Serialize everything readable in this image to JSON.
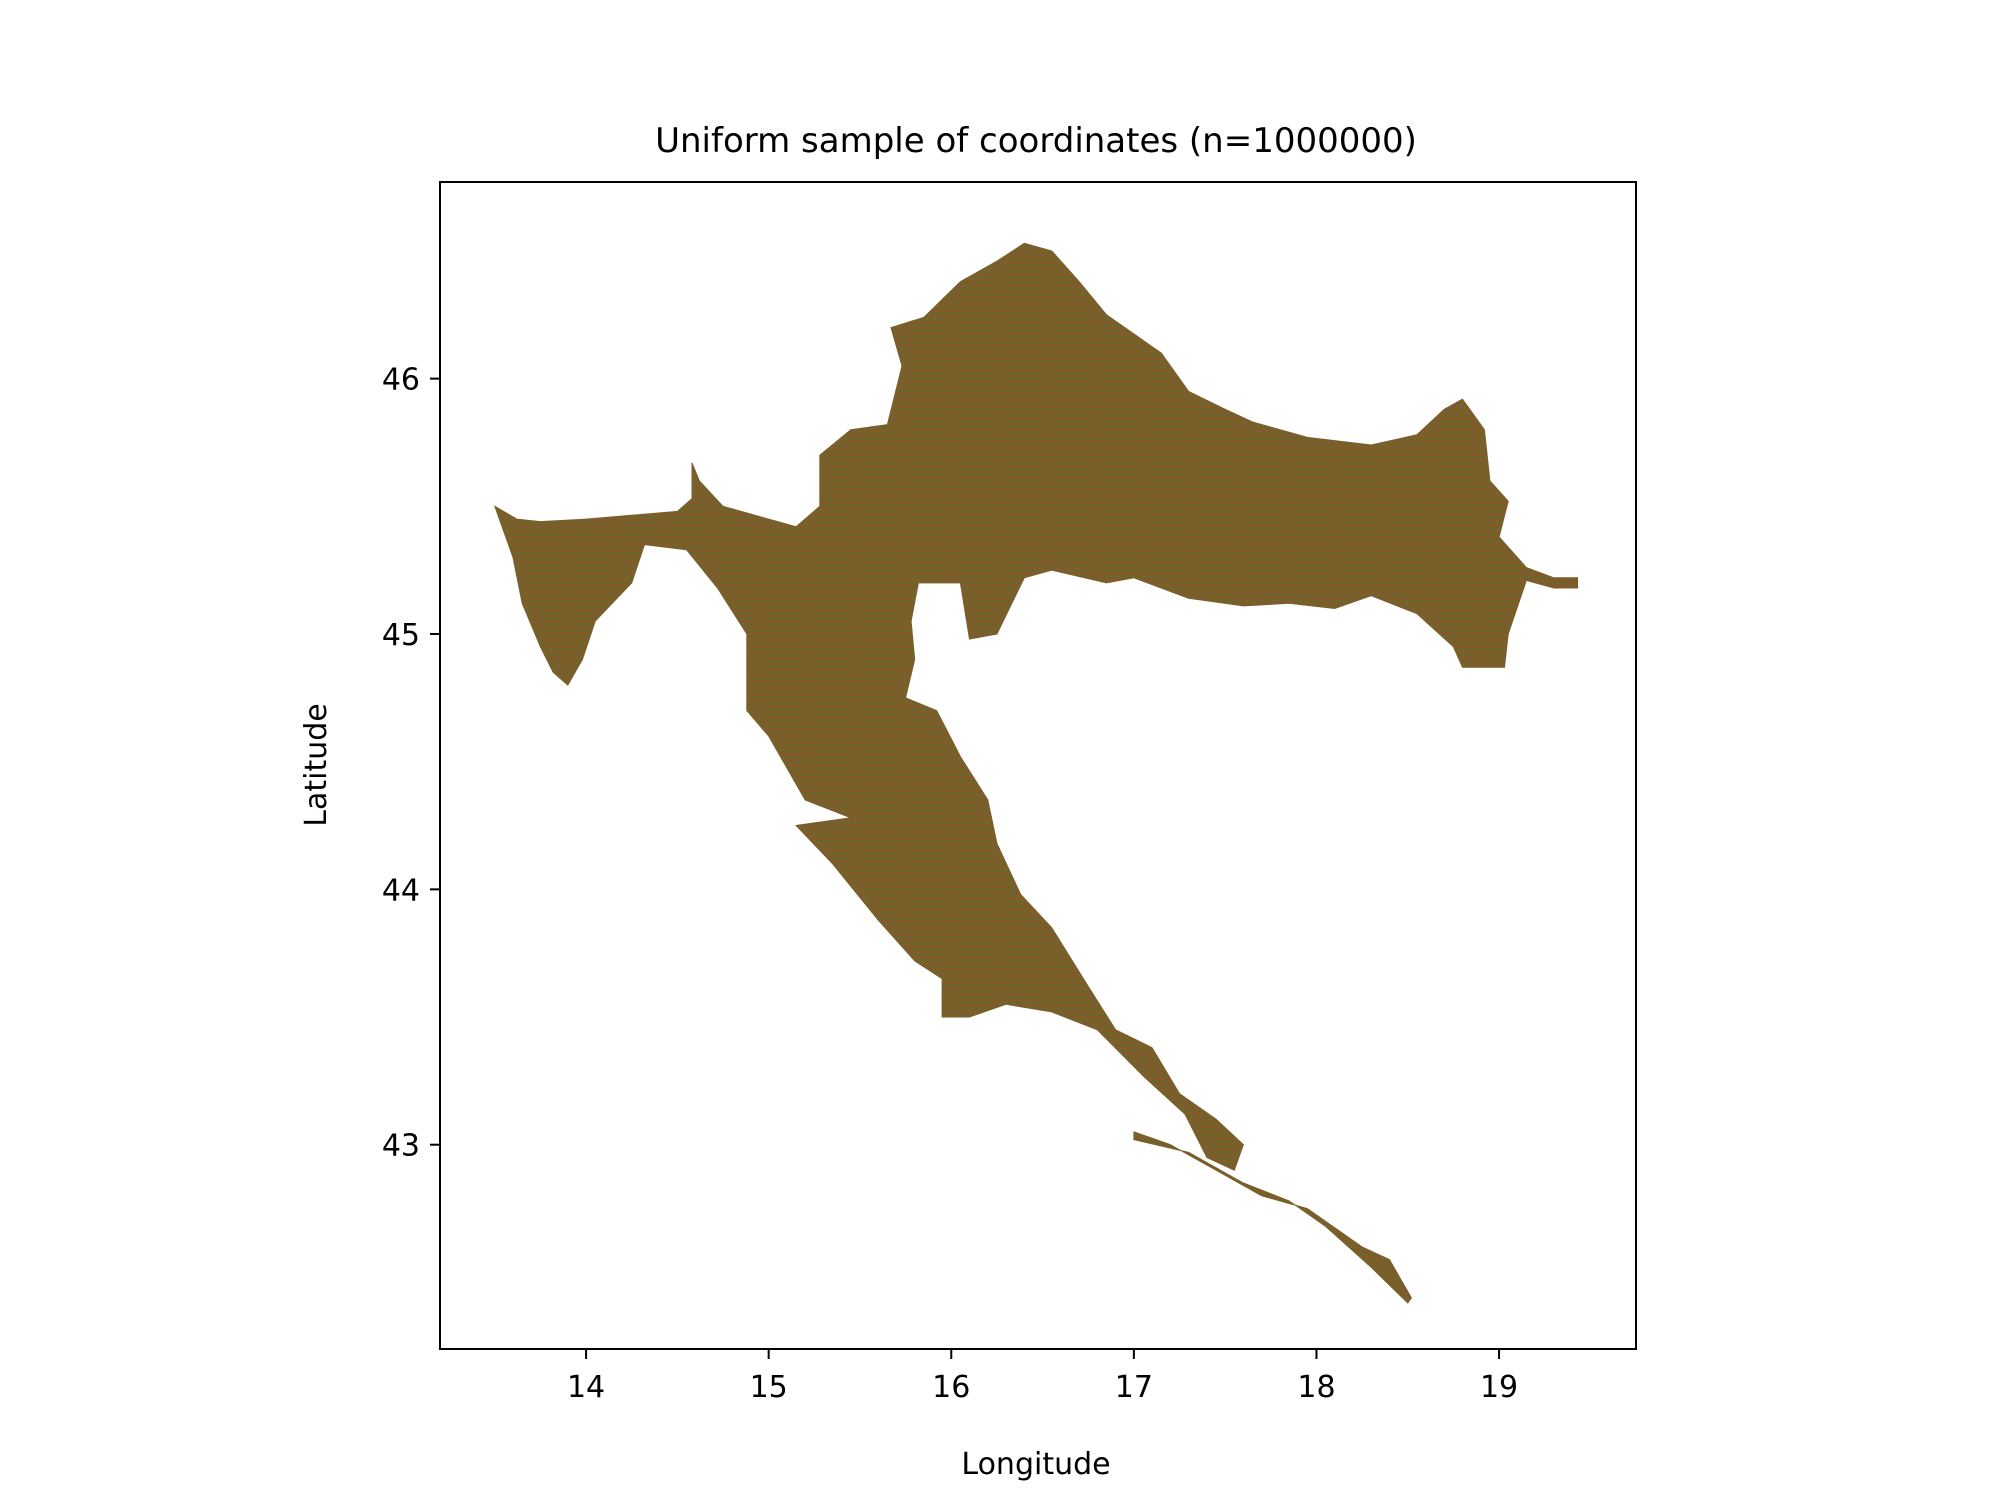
{
  "chart_data": {
    "type": "scatter",
    "title": "Uniform sample of coordinates (n=1000000)",
    "xlabel": "Longitude",
    "ylabel": "Latitude",
    "xlim": [
      13.2,
      19.75
    ],
    "ylim": [
      42.2,
      46.77
    ],
    "x_ticks": [
      14,
      15,
      16,
      17,
      18,
      19
    ],
    "y_ticks": [
      43,
      44,
      45,
      46
    ],
    "grid": false,
    "legend": "none",
    "fill_color": "#7a5f2a",
    "sample_colors": [
      "#5e6b2a",
      "#8a5630",
      "#7a5f2a"
    ],
    "series": [
      {
        "points": [
          [
            13.5,
            45.5
          ],
          [
            13.62,
            45.45
          ],
          [
            13.75,
            45.44
          ],
          [
            14.0,
            45.45
          ],
          [
            14.5,
            45.48
          ],
          [
            14.58,
            45.53
          ],
          [
            14.58,
            45.67
          ],
          [
            14.62,
            45.6
          ],
          [
            14.75,
            45.5
          ],
          [
            14.9,
            45.47
          ],
          [
            15.15,
            45.42
          ],
          [
            15.28,
            45.5
          ],
          [
            15.28,
            45.7
          ],
          [
            15.45,
            45.8
          ],
          [
            15.65,
            45.82
          ],
          [
            15.73,
            46.05
          ],
          [
            15.67,
            46.2
          ],
          [
            15.85,
            46.24
          ],
          [
            16.05,
            46.38
          ],
          [
            16.25,
            46.46
          ],
          [
            16.4,
            46.53
          ],
          [
            16.55,
            46.5
          ],
          [
            16.7,
            46.38
          ],
          [
            16.85,
            46.25
          ],
          [
            17.15,
            46.1
          ],
          [
            17.3,
            45.95
          ],
          [
            17.5,
            45.88
          ],
          [
            17.65,
            45.83
          ],
          [
            17.95,
            45.77
          ],
          [
            18.3,
            45.74
          ],
          [
            18.55,
            45.78
          ],
          [
            18.7,
            45.88
          ],
          [
            18.8,
            45.92
          ],
          [
            18.92,
            45.8
          ],
          [
            18.95,
            45.6
          ],
          [
            19.05,
            45.52
          ],
          [
            19.0,
            45.38
          ],
          [
            19.15,
            45.26
          ],
          [
            19.3,
            45.22
          ],
          [
            19.43,
            45.22
          ],
          [
            19.43,
            45.18
          ],
          [
            19.3,
            45.18
          ],
          [
            19.15,
            45.21
          ],
          [
            19.05,
            45.0
          ],
          [
            19.03,
            44.87
          ],
          [
            18.8,
            44.87
          ],
          [
            18.75,
            44.95
          ],
          [
            18.55,
            45.08
          ],
          [
            18.3,
            45.15
          ],
          [
            18.1,
            45.1
          ],
          [
            17.85,
            45.12
          ],
          [
            17.6,
            45.11
          ],
          [
            17.3,
            45.14
          ],
          [
            17.0,
            45.22
          ],
          [
            16.85,
            45.2
          ],
          [
            16.55,
            45.25
          ],
          [
            16.4,
            45.22
          ],
          [
            16.25,
            45.0
          ],
          [
            16.1,
            44.98
          ],
          [
            16.05,
            45.2
          ],
          [
            15.82,
            45.2
          ],
          [
            15.78,
            45.05
          ],
          [
            15.8,
            44.9
          ],
          [
            15.75,
            44.75
          ],
          [
            15.92,
            44.7
          ],
          [
            16.05,
            44.52
          ],
          [
            16.2,
            44.35
          ],
          [
            16.25,
            44.18
          ],
          [
            16.38,
            43.98
          ],
          [
            16.55,
            43.85
          ],
          [
            16.75,
            43.62
          ],
          [
            16.9,
            43.45
          ],
          [
            17.1,
            43.38
          ],
          [
            17.25,
            43.2
          ],
          [
            17.45,
            43.1
          ],
          [
            17.6,
            43.0
          ],
          [
            17.55,
            42.9
          ],
          [
            17.4,
            42.95
          ],
          [
            17.28,
            43.12
          ],
          [
            17.05,
            43.27
          ],
          [
            16.8,
            43.45
          ],
          [
            16.55,
            43.52
          ],
          [
            16.3,
            43.55
          ],
          [
            16.1,
            43.5
          ],
          [
            15.95,
            43.5
          ],
          [
            15.95,
            43.65
          ],
          [
            15.8,
            43.72
          ],
          [
            15.6,
            43.88
          ],
          [
            15.35,
            44.1
          ],
          [
            15.15,
            44.25
          ],
          [
            15.45,
            44.28
          ],
          [
            15.2,
            44.35
          ],
          [
            15.0,
            44.6
          ],
          [
            14.88,
            44.7
          ],
          [
            14.88,
            45.0
          ],
          [
            14.72,
            45.18
          ],
          [
            14.55,
            45.33
          ],
          [
            14.32,
            45.35
          ],
          [
            14.25,
            45.2
          ],
          [
            14.05,
            45.05
          ],
          [
            13.98,
            44.9
          ],
          [
            13.9,
            44.8
          ],
          [
            13.82,
            44.85
          ],
          [
            13.75,
            44.95
          ],
          [
            13.65,
            45.12
          ],
          [
            13.6,
            45.3
          ],
          [
            13.5,
            45.5
          ]
        ]
      },
      {
        "points": [
          [
            17.0,
            43.05
          ],
          [
            17.2,
            43.0
          ],
          [
            17.45,
            42.9
          ],
          [
            17.7,
            42.8
          ],
          [
            17.95,
            42.75
          ],
          [
            18.25,
            42.6
          ],
          [
            18.4,
            42.55
          ],
          [
            18.52,
            42.4
          ],
          [
            18.5,
            42.38
          ],
          [
            18.3,
            42.52
          ],
          [
            18.05,
            42.68
          ],
          [
            17.85,
            42.78
          ],
          [
            17.6,
            42.85
          ],
          [
            17.3,
            42.97
          ],
          [
            17.0,
            43.02
          ],
          [
            17.0,
            43.05
          ]
        ]
      }
    ]
  }
}
